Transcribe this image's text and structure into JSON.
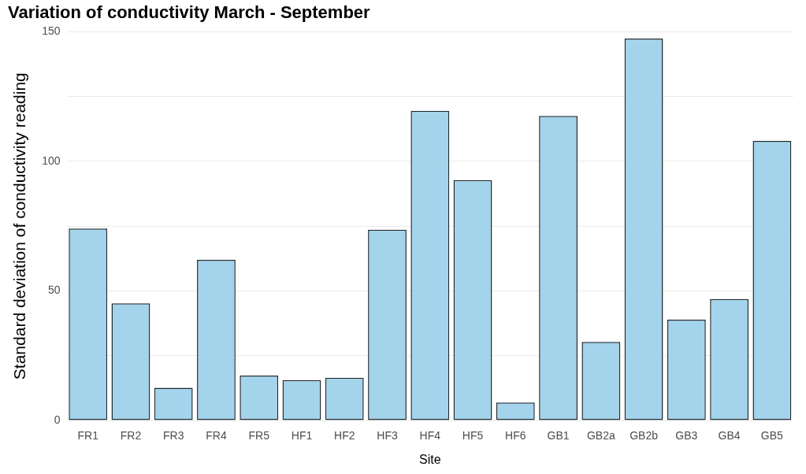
{
  "chart_data": {
    "type": "bar",
    "title": "Variation of conductivity March - September",
    "xlabel": "Site",
    "ylabel": "Standard deviation of conductivity reading",
    "categories": [
      "FR1",
      "FR2",
      "FR3",
      "FR4",
      "FR5",
      "HF1",
      "HF2",
      "HF3",
      "HF4",
      "HF5",
      "HF6",
      "GB1",
      "GB2a",
      "GB2b",
      "GB3",
      "GB4",
      "GB5"
    ],
    "values": [
      74.1,
      45.2,
      12.6,
      62.0,
      17.3,
      15.6,
      16.5,
      73.6,
      119.5,
      92.8,
      6.9,
      117.5,
      30.3,
      147.4,
      38.9,
      46.9,
      107.9
    ],
    "color": "#a3d4ec",
    "ylim": [
      0,
      150
    ],
    "yticks": [
      0,
      {
        "value": 25,
        "label": null
      },
      50,
      {
        "value": 75,
        "label": null
      },
      100,
      {
        "value": 125,
        "label": null
      },
      150
    ],
    "grid": "y",
    "legend": false
  }
}
